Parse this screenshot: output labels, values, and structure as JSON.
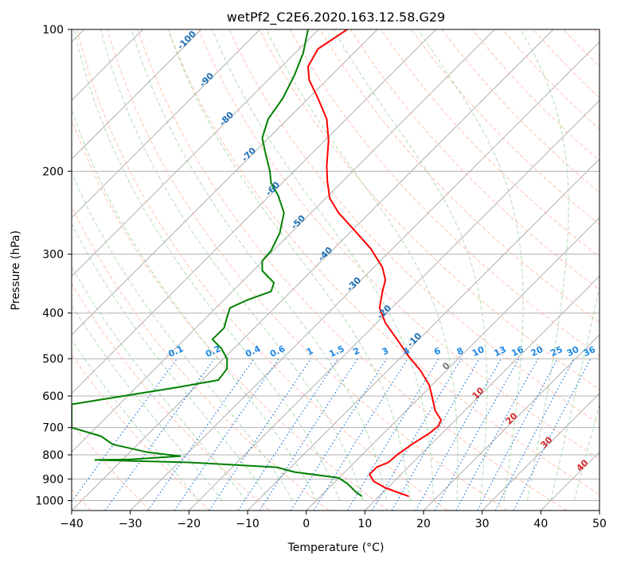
{
  "chart_data": {
    "type": "line",
    "title": "wetPf2_C2E6.2020.163.12.58.G29",
    "xlabel": "Temperature (°C)",
    "ylabel": "Pressure (hPa)",
    "xlim": [
      -40,
      50
    ],
    "ylim": [
      1050,
      100
    ],
    "y_scale": "log",
    "grid": true,
    "x_ticks": [
      -40,
      -30,
      -20,
      -10,
      0,
      10,
      20,
      30,
      40,
      50
    ],
    "y_ticks": [
      100,
      200,
      300,
      400,
      500,
      600,
      700,
      800,
      900,
      1000
    ],
    "background_lines": {
      "isotherm_labels": [
        "-100",
        "-90",
        "-80",
        "-70",
        "-60",
        "-50",
        "-40",
        "-30",
        "-20",
        "-10",
        "0",
        "10",
        "20",
        "30",
        "40"
      ],
      "mixing_ratio_labels": [
        "0.1",
        "0.2",
        "0.4",
        "0.6",
        "1",
        "1.5",
        "2",
        "3",
        "4",
        "6",
        "8",
        "10",
        "13",
        "16",
        "20",
        "25",
        "30",
        "36"
      ]
    },
    "series": [
      {
        "color": "#ff0000",
        "points": [
          [
            17.5,
            980
          ],
          [
            13.5,
            940
          ],
          [
            11.5,
            910
          ],
          [
            10.8,
            880
          ],
          [
            12.0,
            850
          ],
          [
            14.0,
            830
          ],
          [
            15.5,
            800
          ],
          [
            18.0,
            760
          ],
          [
            21.0,
            720
          ],
          [
            22.5,
            695
          ],
          [
            23.0,
            675
          ],
          [
            22.0,
            645
          ],
          [
            21.5,
            605
          ],
          [
            21.0,
            570
          ],
          [
            19.5,
            530
          ],
          [
            17.5,
            495
          ],
          [
            15.5,
            455
          ],
          [
            13.5,
            420
          ],
          [
            12.5,
            390
          ],
          [
            13.0,
            360
          ],
          [
            13.5,
            340
          ],
          [
            13.0,
            320
          ],
          [
            11.0,
            292
          ],
          [
            8.0,
            265
          ],
          [
            5.5,
            245
          ],
          [
            4.0,
            228
          ],
          [
            3.6,
            210
          ],
          [
            3.5,
            195
          ],
          [
            3.8,
            172
          ],
          [
            3.5,
            155
          ],
          [
            2.0,
            140
          ],
          [
            0.5,
            128
          ],
          [
            0.3,
            120
          ],
          [
            2.0,
            110
          ],
          [
            7.0,
            100
          ]
        ]
      },
      {
        "color": "#008000",
        "points": [
          [
            9.5,
            980
          ],
          [
            8.5,
            960
          ],
          [
            7.0,
            920
          ],
          [
            5.5,
            895
          ],
          [
            -2.0,
            870
          ],
          [
            -5.0,
            850
          ],
          [
            -20.0,
            830
          ],
          [
            -36.0,
            820
          ],
          [
            -30.0,
            818
          ],
          [
            -21.5,
            805
          ],
          [
            -27.0,
            790
          ],
          [
            -33.0,
            760
          ],
          [
            -35.0,
            730
          ],
          [
            -40.0,
            700
          ],
          [
            -40.0,
            680
          ],
          [
            -40.0,
            625
          ],
          [
            -33.0,
            605
          ],
          [
            -22.0,
            575
          ],
          [
            -15.0,
            555
          ],
          [
            -13.5,
            525
          ],
          [
            -13.5,
            500
          ],
          [
            -14.5,
            475
          ],
          [
            -16.0,
            455
          ],
          [
            -14.0,
            430
          ],
          [
            -13.5,
            408
          ],
          [
            -13.0,
            390
          ],
          [
            -10.0,
            375
          ],
          [
            -6.0,
            360
          ],
          [
            -5.5,
            345
          ],
          [
            -7.5,
            325
          ],
          [
            -7.5,
            310
          ],
          [
            -6.0,
            295
          ],
          [
            -4.5,
            270
          ],
          [
            -3.8,
            245
          ],
          [
            -4.8,
            225
          ],
          [
            -6.0,
            212
          ],
          [
            -6.2,
            200
          ],
          [
            -7.0,
            182
          ],
          [
            -7.5,
            170
          ],
          [
            -6.5,
            155
          ],
          [
            -4.0,
            140
          ],
          [
            -2.0,
            125
          ],
          [
            -0.5,
            112
          ],
          [
            0.3,
            100
          ]
        ]
      }
    ]
  }
}
